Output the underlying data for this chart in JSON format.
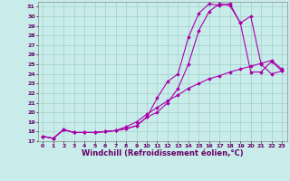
{
  "xlabel": "Windchill (Refroidissement éolien,°C)",
  "xlim": [
    -0.5,
    23.5
  ],
  "ylim": [
    17,
    31.5
  ],
  "yticks": [
    17,
    18,
    19,
    20,
    21,
    22,
    23,
    24,
    25,
    26,
    27,
    28,
    29,
    30,
    31
  ],
  "xticks": [
    0,
    1,
    2,
    3,
    4,
    5,
    6,
    7,
    8,
    9,
    10,
    11,
    12,
    13,
    14,
    15,
    16,
    17,
    18,
    19,
    20,
    21,
    22,
    23
  ],
  "line_color": "#aa00aa",
  "bg_color": "#c8ecea",
  "curve1_x": [
    0,
    1,
    2,
    3,
    4,
    5,
    6,
    7,
    8,
    9,
    10,
    11,
    12,
    13,
    14,
    15,
    16,
    17,
    18,
    19,
    20,
    21,
    22,
    23
  ],
  "curve1_y": [
    17.5,
    17.3,
    18.2,
    17.9,
    17.9,
    17.9,
    18.0,
    18.1,
    18.3,
    18.6,
    19.5,
    21.5,
    23.2,
    24.0,
    27.8,
    30.3,
    31.3,
    31.1,
    31.3,
    29.3,
    24.2,
    24.2,
    25.3,
    24.3
  ],
  "curve2_x": [
    0,
    1,
    2,
    3,
    4,
    5,
    6,
    7,
    8,
    9,
    10,
    11,
    12,
    13,
    14,
    15,
    16,
    17,
    18,
    19,
    20,
    21,
    22,
    23
  ],
  "curve2_y": [
    17.5,
    17.3,
    18.2,
    17.9,
    17.9,
    17.9,
    18.0,
    18.1,
    18.3,
    18.6,
    19.5,
    20.0,
    21.0,
    22.5,
    25.0,
    28.5,
    30.5,
    31.3,
    31.1,
    29.3,
    30.0,
    25.0,
    24.0,
    24.3
  ],
  "curve3_x": [
    0,
    1,
    2,
    3,
    4,
    5,
    6,
    7,
    8,
    9,
    10,
    11,
    12,
    13,
    14,
    15,
    16,
    17,
    18,
    19,
    20,
    21,
    22,
    23
  ],
  "curve3_y": [
    17.5,
    17.3,
    18.2,
    17.9,
    17.9,
    17.9,
    18.0,
    18.1,
    18.5,
    19.0,
    19.8,
    20.5,
    21.2,
    21.8,
    22.5,
    23.0,
    23.5,
    23.8,
    24.2,
    24.5,
    24.8,
    25.1,
    25.4,
    24.5
  ],
  "figsize": [
    3.2,
    2.0
  ],
  "dpi": 100,
  "marker": "D",
  "markersize": 1.8,
  "linewidth": 0.8,
  "tick_fontsize": 4.5,
  "xlabel_fontsize": 6.0
}
